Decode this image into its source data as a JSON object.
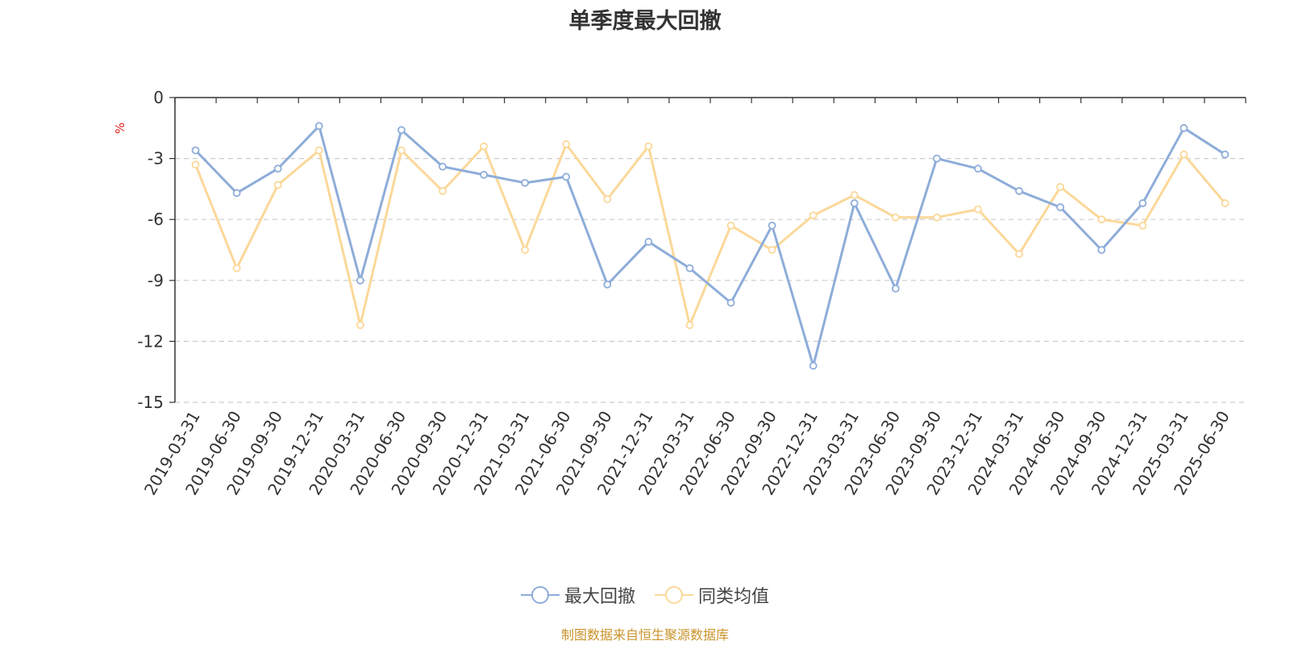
{
  "chart_data": {
    "type": "line",
    "title": "单季度最大回撤",
    "ylabel": "%",
    "ylim": [
      -15,
      0
    ],
    "yticks": [
      0,
      -3,
      -6,
      -9,
      -12,
      -15
    ],
    "grid": true,
    "legend_position": "bottom-center",
    "categories": [
      "2019-03-31",
      "2019-06-30",
      "2019-09-30",
      "2019-12-31",
      "2020-03-31",
      "2020-06-30",
      "2020-09-30",
      "2020-12-31",
      "2021-03-31",
      "2021-06-30",
      "2021-09-30",
      "2021-12-31",
      "2022-03-31",
      "2022-06-30",
      "2022-09-30",
      "2022-12-31",
      "2023-03-31",
      "2023-06-30",
      "2023-09-30",
      "2023-12-31",
      "2024-03-31",
      "2024-06-30",
      "2024-09-30",
      "2024-12-31",
      "2025-03-31",
      "2025-06-30"
    ],
    "series": [
      {
        "name": "最大回撤",
        "color": "#8eadd9",
        "values": [
          -2.6,
          -4.7,
          -3.5,
          -1.4,
          -9.0,
          -1.6,
          -3.4,
          -3.8,
          -4.2,
          -3.9,
          -9.2,
          -7.1,
          -8.4,
          -10.1,
          -6.3,
          -13.2,
          -5.2,
          -9.4,
          -3.0,
          -3.5,
          -4.6,
          -5.4,
          -7.5,
          -5.2,
          -1.5,
          -2.8
        ]
      },
      {
        "name": "同类均值",
        "color": "#fbd899",
        "values": [
          -3.3,
          -8.4,
          -4.3,
          -2.6,
          -11.2,
          -2.6,
          -4.6,
          -2.4,
          -7.5,
          -2.3,
          -5.0,
          -2.4,
          -11.2,
          -6.3,
          -7.5,
          -5.8,
          -4.8,
          -5.9,
          -5.9,
          -5.5,
          -7.7,
          -4.4,
          -6.0,
          -6.3,
          -2.8,
          -5.2
        ]
      }
    ]
  },
  "source_text": "制图数据来自恒生聚源数据库"
}
